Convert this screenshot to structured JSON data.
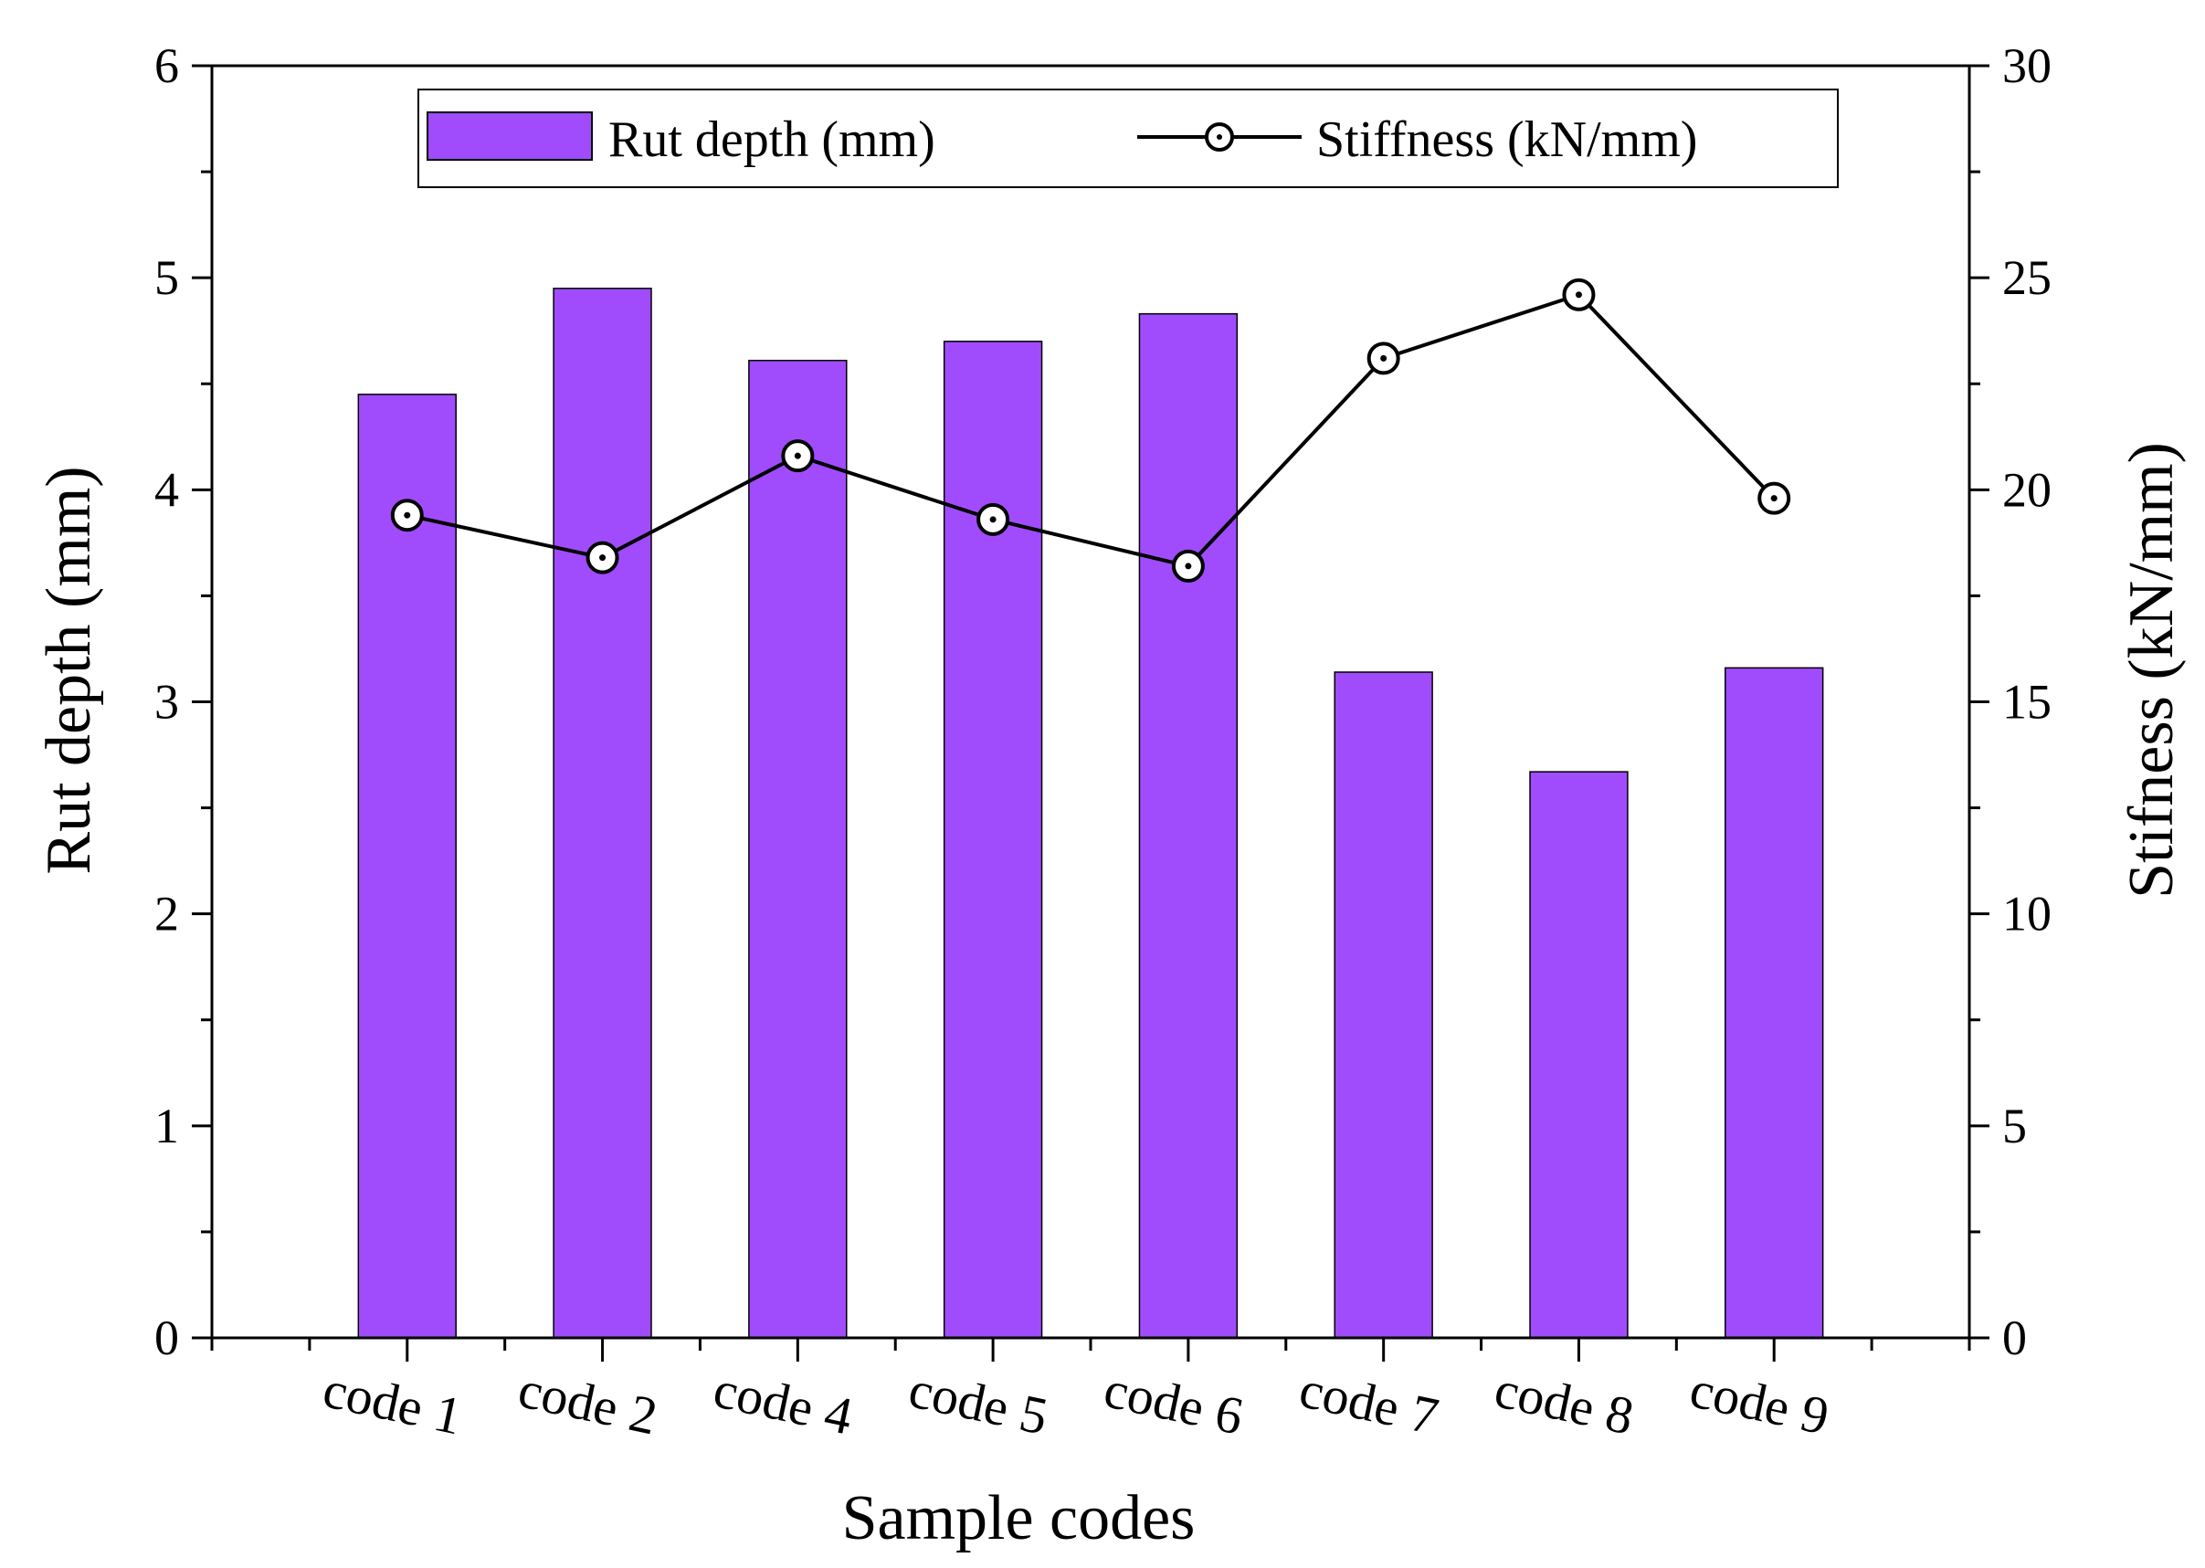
{
  "chart_data": {
    "type": "bar",
    "categories": [
      "code 1",
      "code 2",
      "code 4",
      "code 5",
      "code 6",
      "code 7",
      "code 8",
      "code 9"
    ],
    "series": [
      {
        "name": "Rut depth (mm)",
        "kind": "bar",
        "axis": "left",
        "color": "#a04cfc",
        "values": [
          4.45,
          4.95,
          4.61,
          4.7,
          4.83,
          3.14,
          2.67,
          3.16
        ]
      },
      {
        "name": "Stiffness (kN/mm)",
        "kind": "line",
        "axis": "right",
        "color": "#000000",
        "values": [
          19.4,
          18.4,
          20.8,
          19.3,
          18.2,
          23.1,
          24.6,
          19.8
        ]
      }
    ],
    "xlabel": "Sample codes",
    "ylabel": "Rut depth (mm)",
    "y2label": "Stifness (kN/mm)",
    "ylim": [
      0,
      6
    ],
    "y2lim": [
      0,
      30
    ],
    "yticks": [
      "0",
      "1",
      "2",
      "3",
      "4",
      "5",
      "6"
    ],
    "y2ticks": [
      "0",
      "5",
      "10",
      "15",
      "20",
      "25",
      "30"
    ],
    "legend_position": "top-center",
    "grid": false
  }
}
